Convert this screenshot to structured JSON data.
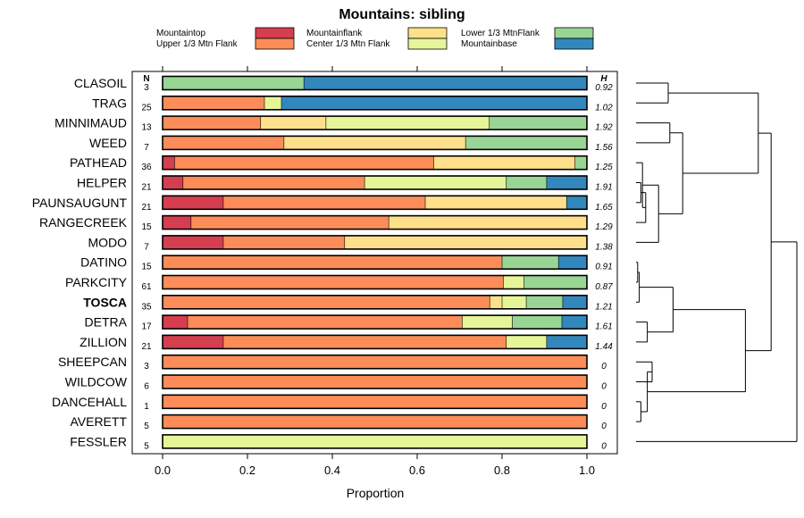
{
  "chart_data": {
    "type": "bar",
    "stacked": true,
    "orientation": "horizontal",
    "title": "Mountains: sibling",
    "xlabel": "Proportion",
    "xlim": [
      0,
      1
    ],
    "x_ticks": [
      "0.0",
      "0.2",
      "0.4",
      "0.6",
      "0.8",
      "1.0"
    ],
    "n_header": "N",
    "h_header": "H",
    "segments": [
      {
        "name": "Mountaintop",
        "color": "#d53e4f"
      },
      {
        "name": "Upper 1/3 Mtn Flank",
        "color": "#fc8d59"
      },
      {
        "name": "Mountainflank",
        "color": "#fee08b"
      },
      {
        "name": "Center 1/3 Mtn Flank",
        "color": "#e6f598"
      },
      {
        "name": "Lower 1/3 MtnFlank",
        "color": "#99d594"
      },
      {
        "name": "Mountainbase",
        "color": "#3288bd"
      }
    ],
    "legend": [
      {
        "name": "Mountaintop",
        "color": "#d53e4f"
      },
      {
        "name": "Upper 1/3 Mtn Flank",
        "color": "#fc8d59"
      },
      {
        "name": "Mountainflank",
        "color": "#fee08b"
      },
      {
        "name": "Center 1/3 Mtn Flank",
        "color": "#e6f598"
      },
      {
        "name": "Lower 1/3 MtnFlank",
        "color": "#99d594"
      },
      {
        "name": "Mountainbase",
        "color": "#3288bd"
      }
    ],
    "rows": [
      {
        "name": "CLASOIL",
        "n": "3",
        "h": "0.92",
        "bold": false,
        "values": [
          0,
          0,
          0,
          0,
          0.333,
          0.667
        ]
      },
      {
        "name": "TRAG",
        "n": "25",
        "h": "1.02",
        "bold": false,
        "values": [
          0,
          0.24,
          0,
          0.04,
          0,
          0.72
        ]
      },
      {
        "name": "MINNIMAUD",
        "n": "13",
        "h": "1.92",
        "bold": false,
        "values": [
          0,
          0.231,
          0.154,
          0.385,
          0.23,
          0
        ]
      },
      {
        "name": "WEED",
        "n": "7",
        "h": "1.56",
        "bold": false,
        "values": [
          0,
          0.286,
          0.428,
          0,
          0.286,
          0
        ]
      },
      {
        "name": "PATHEAD",
        "n": "36",
        "h": "1.25",
        "bold": false,
        "values": [
          0.028,
          0.611,
          0.333,
          0,
          0.028,
          0
        ]
      },
      {
        "name": "HELPER",
        "n": "21",
        "h": "1.91",
        "bold": false,
        "values": [
          0.048,
          0.428,
          0,
          0.334,
          0.095,
          0.095
        ]
      },
      {
        "name": "PAUNSAUGUNT",
        "n": "21",
        "h": "1.65",
        "bold": false,
        "values": [
          0.143,
          0.476,
          0.333,
          0,
          0,
          0.048
        ]
      },
      {
        "name": "RANGECREEK",
        "n": "15",
        "h": "1.29",
        "bold": false,
        "values": [
          0.067,
          0.466,
          0.467,
          0,
          0,
          0
        ]
      },
      {
        "name": "MODO",
        "n": "7",
        "h": "1.38",
        "bold": false,
        "values": [
          0.143,
          0.286,
          0.571,
          0,
          0,
          0
        ]
      },
      {
        "name": "DATINO",
        "n": "15",
        "h": "0.91",
        "bold": false,
        "values": [
          0,
          0.8,
          0,
          0,
          0.133,
          0.067
        ]
      },
      {
        "name": "PARKCITY",
        "n": "61",
        "h": "0.87",
        "bold": false,
        "values": [
          0,
          0.803,
          0,
          0.049,
          0.148,
          0
        ]
      },
      {
        "name": "TOSCA",
        "n": "35",
        "h": "1.21",
        "bold": true,
        "values": [
          0,
          0.771,
          0.029,
          0.057,
          0.086,
          0.057
        ]
      },
      {
        "name": "DETRA",
        "n": "17",
        "h": "1.61",
        "bold": false,
        "values": [
          0.059,
          0.647,
          0,
          0.118,
          0.117,
          0.059
        ]
      },
      {
        "name": "ZILLION",
        "n": "21",
        "h": "1.44",
        "bold": false,
        "values": [
          0.143,
          0.667,
          0,
          0.095,
          0,
          0.095
        ]
      },
      {
        "name": "SHEEPCAN",
        "n": "3",
        "h": "0",
        "bold": false,
        "values": [
          0,
          1,
          0,
          0,
          0,
          0
        ]
      },
      {
        "name": "WILDCOW",
        "n": "6",
        "h": "0",
        "bold": false,
        "values": [
          0,
          1,
          0,
          0,
          0,
          0
        ]
      },
      {
        "name": "DANCEHALL",
        "n": "1",
        "h": "0",
        "bold": false,
        "values": [
          0,
          1,
          0,
          0,
          0,
          0
        ]
      },
      {
        "name": "AVERETT",
        "n": "5",
        "h": "0",
        "bold": false,
        "values": [
          0,
          1,
          0,
          0,
          0,
          0
        ]
      },
      {
        "name": "FESSLER",
        "n": "5",
        "h": "0",
        "bold": false,
        "values": [
          0,
          0,
          0,
          1,
          0,
          0
        ]
      }
    ],
    "dendrogram": {
      "root_height": 1,
      "merges": [
        {
          "a": 0,
          "b": 1,
          "h": 0.2,
          "id": "A"
        },
        {
          "a": 2,
          "b": 3,
          "h": 0.21,
          "id": "B"
        },
        {
          "a": 5,
          "b": 6,
          "h": 0.03,
          "id": "C"
        },
        {
          "a": 7,
          "b": "C",
          "h": 0.06,
          "id": "D"
        },
        {
          "a": 4,
          "b": "D",
          "h": 0.04,
          "id": "E"
        },
        {
          "a": "E",
          "b": 8,
          "h": 0.14,
          "id": "F"
        },
        {
          "a": "B",
          "b": "F",
          "h": 0.29,
          "id": "G"
        },
        {
          "a": 9,
          "b": 10,
          "h": 0.01,
          "id": "H"
        },
        {
          "a": "H",
          "b": 11,
          "h": 0.02,
          "id": "I"
        },
        {
          "a": 12,
          "b": 13,
          "h": 0.07,
          "id": "J"
        },
        {
          "a": "I",
          "b": "J",
          "h": 0.23,
          "id": "K"
        },
        {
          "a": 14,
          "b": 15,
          "h": 0.1,
          "id": "L"
        },
        {
          "a": 16,
          "b": 17,
          "h": 0.03,
          "id": "M"
        },
        {
          "a": "L",
          "b": "M",
          "h": 0.07,
          "id": "N"
        },
        {
          "a": "K",
          "b": "N",
          "h": 0.68,
          "id": "O"
        },
        {
          "a": "A",
          "b": "G",
          "h": 0.76,
          "id": "P"
        },
        {
          "a": "P",
          "b": "O",
          "h": 0.84,
          "id": "Q"
        },
        {
          "a": "Q",
          "b": 18,
          "h": 1.0,
          "id": "R"
        }
      ]
    }
  }
}
